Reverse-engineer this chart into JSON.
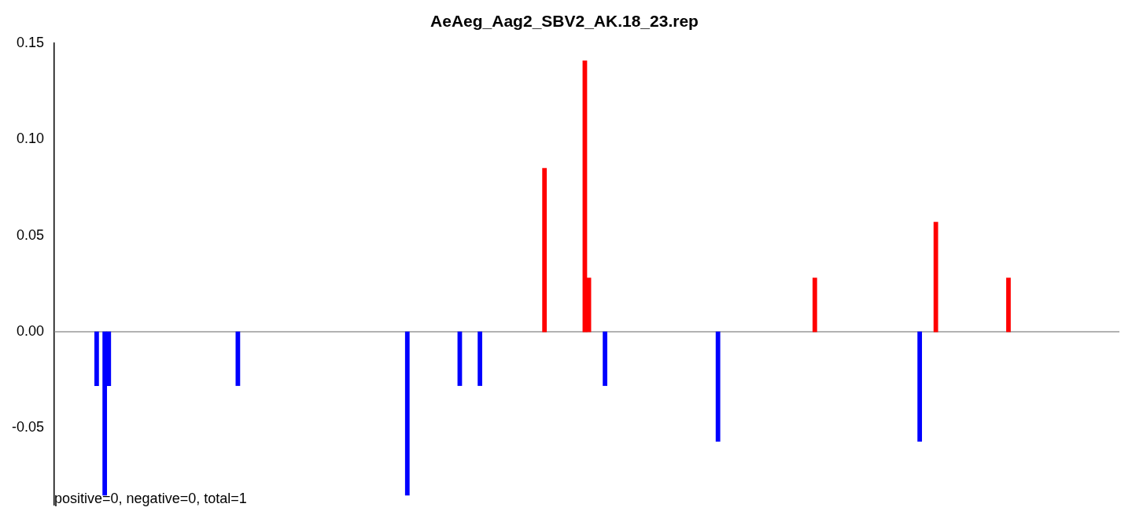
{
  "chart_data": {
    "type": "bar",
    "title": "AeAeg_Aag2_SBV2_AK.18_23.rep",
    "categories": [
      null,
      null,
      null,
      null,
      null,
      null,
      null,
      null,
      null,
      null,
      null,
      null,
      null,
      null,
      null,
      null,
      null,
      null,
      null,
      null,
      null,
      null,
      null,
      null,
      null,
      null,
      null,
      null,
      null,
      null,
      null,
      null,
      null,
      null,
      null,
      null,
      null,
      null,
      null,
      null,
      null,
      null,
      null,
      null,
      null,
      null,
      null,
      null,
      null,
      null,
      null,
      null,
      null,
      null,
      null,
      null,
      null,
      null,
      null,
      null,
      null,
      null,
      null,
      null,
      null,
      null,
      null,
      null,
      null,
      null,
      null,
      null,
      null,
      null,
      null,
      null,
      null,
      null,
      null,
      null,
      null,
      null,
      null,
      null,
      null,
      null,
      null,
      null,
      null,
      null,
      null,
      null,
      null,
      null,
      null,
      null,
      null,
      null,
      null,
      null,
      null,
      null,
      null,
      null,
      null,
      null,
      null,
      null,
      null,
      null,
      null,
      null,
      null,
      null,
      null,
      null,
      null,
      null,
      null,
      null,
      null,
      null,
      null,
      null,
      null,
      null,
      null,
      null,
      null,
      null,
      null,
      null,
      null,
      null,
      null,
      null,
      null,
      null,
      null,
      null,
      null,
      null,
      null,
      null,
      null,
      null,
      null,
      null,
      null,
      null,
      null,
      null,
      null,
      null,
      null,
      null,
      null,
      null,
      null,
      null,
      null,
      null,
      null,
      null,
      null,
      null,
      null,
      null,
      null,
      null,
      null,
      null,
      null,
      null,
      null,
      null,
      null,
      null,
      null,
      null,
      null,
      null,
      null,
      null,
      null,
      null,
      null,
      null,
      null,
      null,
      null,
      null,
      null,
      null,
      null,
      null,
      null,
      null,
      null,
      null,
      null,
      null,
      null,
      null,
      null,
      null,
      null,
      null,
      null,
      null,
      null,
      null,
      null,
      null,
      null,
      null,
      null,
      null,
      null,
      null,
      null,
      null,
      null,
      null,
      null,
      null,
      null,
      null,
      null,
      null,
      null,
      null,
      null,
      null,
      null,
      null,
      null,
      null,
      null,
      null,
      null,
      null,
      null,
      null,
      null,
      null,
      null,
      null,
      null,
      null,
      null,
      null,
      null,
      null,
      null,
      null,
      null,
      null,
      null,
      null,
      null,
      null,
      null,
      null
    ],
    "series": [
      {
        "color": "#ff0000",
        "values": [
          null,
          null,
          null,
          null,
          null,
          null,
          null,
          null,
          null,
          null,
          null,
          null,
          null,
          null,
          null,
          null,
          null,
          null,
          null,
          null,
          null,
          null,
          null,
          null,
          null,
          null,
          null,
          null,
          null,
          null,
          null,
          null,
          null,
          null,
          null,
          null,
          null,
          null,
          null,
          null,
          null,
          null,
          null,
          null,
          null,
          null,
          null,
          null,
          null,
          null,
          null,
          null,
          null,
          null,
          null,
          null,
          null,
          null,
          null,
          null,
          null,
          null,
          null,
          null,
          null,
          null,
          null,
          null,
          null,
          null,
          null,
          null,
          null,
          null,
          null,
          null,
          null,
          null,
          null,
          null,
          null,
          null,
          null,
          null,
          null,
          null,
          null,
          null,
          null,
          null,
          null,
          null,
          null,
          null,
          null,
          null,
          null,
          null,
          null,
          null,
          null,
          null,
          null,
          null,
          null,
          null,
          null,
          null,
          null,
          null,
          null,
          null,
          null,
          null,
          null,
          null,
          null,
          null,
          null,
          null,
          null,
          0.085,
          null,
          null,
          null,
          null,
          null,
          null,
          null,
          null,
          null,
          0.141,
          0.028,
          null,
          null,
          null,
          null,
          null,
          null,
          null,
          null,
          null,
          null,
          null,
          null,
          null,
          null,
          null,
          null,
          null,
          null,
          null,
          null,
          null,
          null,
          null,
          null,
          null,
          null,
          null,
          null,
          null,
          null,
          null,
          null,
          null,
          null,
          null,
          null,
          null,
          null,
          null,
          null,
          null,
          null,
          null,
          null,
          null,
          null,
          null,
          null,
          null,
          null,
          null,
          null,
          null,
          null,
          null,
          0.028,
          null,
          null,
          null,
          null,
          null,
          null,
          null,
          null,
          null,
          null,
          null,
          null,
          null,
          null,
          null,
          null,
          null,
          null,
          null,
          null,
          null,
          null,
          null,
          null,
          null,
          null,
          null,
          null,
          null,
          0.057,
          null,
          null,
          null,
          null,
          null,
          null,
          null,
          null,
          null,
          null,
          null,
          null,
          null,
          null,
          null,
          null,
          null,
          0.028,
          null,
          null,
          null,
          null,
          null,
          null,
          null,
          null,
          null,
          null,
          null,
          null,
          null,
          null,
          null,
          null,
          null,
          null,
          null,
          null,
          null,
          null,
          null,
          null,
          null,
          null,
          null
        ]
      },
      {
        "color": "#0000ff",
        "values": [
          null,
          null,
          null,
          null,
          null,
          null,
          null,
          null,
          null,
          null,
          -0.028,
          null,
          -0.085,
          -0.028,
          null,
          null,
          null,
          null,
          null,
          null,
          null,
          null,
          null,
          null,
          null,
          null,
          null,
          null,
          null,
          null,
          null,
          null,
          null,
          null,
          null,
          null,
          null,
          null,
          null,
          null,
          null,
          null,
          null,
          null,
          null,
          -0.028,
          null,
          null,
          null,
          null,
          null,
          null,
          null,
          null,
          null,
          null,
          null,
          null,
          null,
          null,
          null,
          null,
          null,
          null,
          null,
          null,
          null,
          null,
          null,
          null,
          null,
          null,
          null,
          null,
          null,
          null,
          null,
          null,
          null,
          null,
          null,
          null,
          null,
          null,
          null,
          null,
          null,
          -0.085,
          null,
          null,
          null,
          null,
          null,
          null,
          null,
          null,
          null,
          null,
          null,
          null,
          -0.028,
          null,
          null,
          null,
          null,
          -0.028,
          null,
          null,
          null,
          null,
          null,
          null,
          null,
          null,
          null,
          null,
          null,
          null,
          null,
          null,
          null,
          null,
          null,
          null,
          null,
          null,
          null,
          null,
          null,
          null,
          null,
          null,
          null,
          null,
          null,
          null,
          -0.028,
          null,
          null,
          null,
          null,
          null,
          null,
          null,
          null,
          null,
          null,
          null,
          null,
          null,
          null,
          null,
          null,
          null,
          null,
          null,
          null,
          null,
          null,
          null,
          null,
          null,
          null,
          null,
          -0.057,
          null,
          null,
          null,
          null,
          null,
          null,
          null,
          null,
          null,
          null,
          null,
          null,
          null,
          null,
          null,
          null,
          null,
          null,
          null,
          null,
          null,
          null,
          null,
          null,
          null,
          null,
          null,
          null,
          null,
          null,
          null,
          null,
          null,
          null,
          null,
          null,
          null,
          null,
          null,
          null,
          null,
          null,
          null,
          null,
          null,
          null,
          null,
          null,
          null,
          -0.057,
          null,
          null,
          null,
          null,
          null,
          null,
          null,
          null,
          null,
          null,
          null,
          null,
          null,
          null,
          null,
          null,
          null,
          null,
          null,
          null,
          null,
          null,
          null,
          null,
          null,
          null,
          null,
          null,
          null,
          null,
          null,
          null,
          null,
          null,
          null,
          null,
          null,
          null,
          null,
          null,
          null,
          null,
          null,
          null,
          null,
          null,
          null,
          null,
          null
        ]
      }
    ],
    "ylim": [
      -0.09,
      0.15
    ],
    "yticks": [
      {
        "value": -0.05,
        "label": "-0.05"
      },
      {
        "value": 0,
        "label": "0.00"
      },
      {
        "value": 0.05,
        "label": "0.05"
      },
      {
        "value": 0.1,
        "label": "0.10"
      },
      {
        "value": 0.15,
        "label": "0.15"
      }
    ],
    "ref_lines": [
      {
        "axis": "y",
        "value": 0,
        "color": "#999999"
      }
    ],
    "annotations": [
      "positive=0, negative=0, total=1"
    ],
    "tick_labels": "y",
    "grid": false,
    "legend": false
  }
}
